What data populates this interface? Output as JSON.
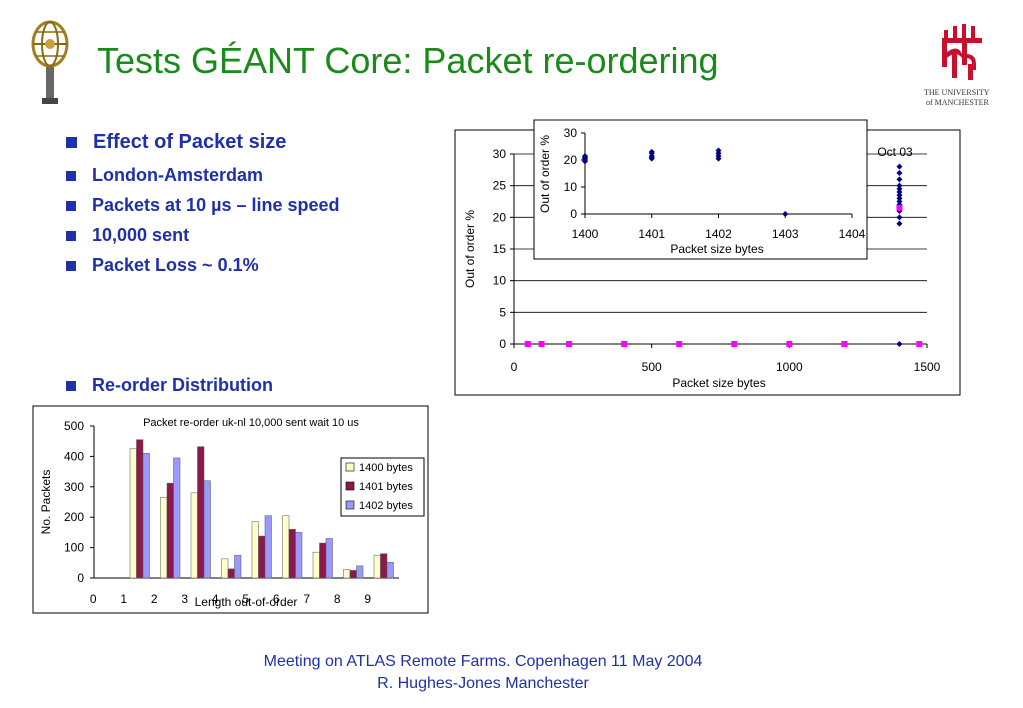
{
  "slide": {
    "title": "Tests GÉANT Core: Packet re-ordering",
    "bullets": [
      {
        "text": "Effect of Packet size",
        "level": 1
      },
      {
        "text": "London-Amsterdam",
        "level": 2
      },
      {
        "text": "Packets at 10 µs – line speed",
        "level": 2
      },
      {
        "text": "10,000 sent",
        "level": 2
      },
      {
        "text": "Packet Loss ~ 0.1%",
        "level": 2
      }
    ],
    "bullet_reorder": "Re-order Distribution",
    "footer_line1": "Meeting on ATLAS Remote Farms. Copenhagen 11 May 2004",
    "footer_line2": "R. Hughes-Jones  Manchester",
    "logo_university": [
      "THE UNIVERSITY",
      "of MANCHESTER"
    ],
    "accent_color": "#1f30a8",
    "title_color": "#1a8a1a",
    "logo_color": "#c8102e"
  },
  "chart_data": [
    {
      "type": "scatter",
      "annotation": "Oct 03",
      "xlabel": "Packet size bytes",
      "ylabel": "Out of order %",
      "xlim": [
        0,
        1500
      ],
      "ylim": [
        0,
        30
      ],
      "xticks": [
        0,
        500,
        1000,
        1500
      ],
      "yticks": [
        0,
        5,
        10,
        15,
        20,
        25,
        30
      ],
      "grid": true,
      "series": [
        {
          "color": "#000080",
          "marker": "diamond",
          "points": [
            [
              1400,
              19
            ],
            [
              1400,
              20
            ],
            [
              1400,
              21
            ],
            [
              1400,
              22
            ],
            [
              1400,
              22.5
            ],
            [
              1400,
              23
            ],
            [
              1400,
              23.5
            ],
            [
              1400,
              24
            ],
            [
              1400,
              24.5
            ],
            [
              1400,
              25
            ],
            [
              1400,
              26
            ],
            [
              1400,
              27
            ],
            [
              1400,
              28
            ],
            [
              1400,
              0
            ]
          ]
        },
        {
          "color": "#ff00ff",
          "marker": "square",
          "points": [
            [
              50,
              0
            ],
            [
              100,
              0
            ],
            [
              200,
              0
            ],
            [
              400,
              0
            ],
            [
              600,
              0
            ],
            [
              800,
              0
            ],
            [
              1000,
              0
            ],
            [
              1200,
              0
            ],
            [
              1400,
              21.5
            ],
            [
              1472,
              0
            ]
          ]
        }
      ]
    },
    {
      "type": "scatter",
      "inset": true,
      "xlabel": "Packet size bytes",
      "ylabel": "Out of order %",
      "xlim": [
        1400,
        1404
      ],
      "ylim": [
        0,
        30
      ],
      "xticks": [
        1400,
        1401,
        1402,
        1403,
        1404
      ],
      "yticks": [
        0,
        10,
        20,
        30
      ],
      "series": [
        {
          "color": "#000080",
          "marker": "diamond",
          "points": [
            [
              1400,
              19.5
            ],
            [
              1400,
              20
            ],
            [
              1400,
              20.5
            ],
            [
              1400,
              21
            ],
            [
              1400,
              21.5
            ],
            [
              1401,
              20.5
            ],
            [
              1401,
              21
            ],
            [
              1401,
              21.5
            ],
            [
              1401,
              22.5
            ],
            [
              1401,
              23
            ],
            [
              1402,
              20.5
            ],
            [
              1402,
              21.5
            ],
            [
              1402,
              22.5
            ],
            [
              1402,
              23.5
            ],
            [
              1403,
              0
            ]
          ]
        }
      ]
    },
    {
      "type": "bar",
      "title": "Packet re-order uk-nl 10,000 sent wait 10 us",
      "xlabel": "Length out-of-order",
      "ylabel": "No. Packets",
      "ylim": [
        0,
        500
      ],
      "yticks": [
        0,
        100,
        200,
        300,
        400,
        500
      ],
      "categories": [
        "0",
        "1",
        "2",
        "3",
        "4",
        "5",
        "6",
        "7",
        "8",
        "9"
      ],
      "legend_position": "right",
      "series": [
        {
          "name": "1400 bytes",
          "color": "#ffffcc",
          "values": [
            0,
            425,
            265,
            280,
            63,
            185,
            205,
            85,
            28,
            75
          ]
        },
        {
          "name": "1401 bytes",
          "color": "#8b1a4a",
          "values": [
            0,
            455,
            312,
            432,
            30,
            138,
            160,
            115,
            25,
            80
          ]
        },
        {
          "name": "1402 bytes",
          "color": "#9999ff",
          "values": [
            0,
            410,
            395,
            320,
            75,
            205,
            150,
            130,
            40,
            52
          ]
        }
      ]
    }
  ]
}
